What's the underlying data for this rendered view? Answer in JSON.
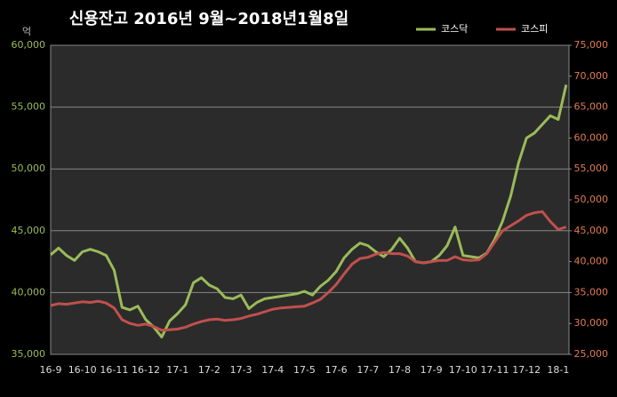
{
  "chart_data": {
    "type": "line",
    "title": "신용잔고 2016년 9월~2018년1월8일",
    "y_label": "억",
    "categories": [
      "16-9",
      null,
      null,
      null,
      "16-10",
      null,
      null,
      null,
      "16-11",
      null,
      null,
      null,
      "16-12",
      null,
      null,
      null,
      "17-1",
      null,
      null,
      null,
      "17-2",
      null,
      null,
      null,
      "17-3",
      null,
      null,
      null,
      "17-4",
      null,
      null,
      null,
      "17-5",
      null,
      null,
      null,
      "17-6",
      null,
      null,
      null,
      "17-7",
      null,
      null,
      null,
      "17-8",
      null,
      null,
      null,
      "17-9",
      null,
      null,
      null,
      "17-10",
      null,
      null,
      null,
      "17-11",
      null,
      null,
      null,
      "17-12",
      null,
      null,
      null,
      "18-1",
      null
    ],
    "series": [
      {
        "name": "코스닥",
        "color": "#9bbb59",
        "values": [
          43050,
          43600,
          43000,
          42600,
          43300,
          43500,
          43300,
          43000,
          41800,
          38800,
          38600,
          38900,
          37800,
          37200,
          36400,
          37700,
          38300,
          39000,
          40800,
          41200,
          40600,
          40300,
          39600,
          39500,
          39800,
          38700,
          39200,
          39500,
          39600,
          39700,
          39800,
          39900,
          40100,
          39800,
          40500,
          41000,
          41700,
          42800,
          43500,
          44000,
          43800,
          43300,
          42900,
          43500,
          44400,
          43600,
          42500,
          42400,
          42500,
          43000,
          43800,
          45300,
          43000,
          42900,
          42800,
          43200,
          44300,
          45800,
          47800,
          50500,
          52500,
          52900,
          53600,
          54300,
          54000,
          56800
        ]
      },
      {
        "name": "코스피",
        "color": "#c0504d",
        "axis": "y2",
        "values": [
          32900,
          33200,
          33100,
          33300,
          33500,
          33400,
          33600,
          33300,
          32500,
          30600,
          30000,
          29700,
          29900,
          29500,
          28900,
          29000,
          29100,
          29400,
          29900,
          30300,
          30600,
          30700,
          30500,
          30600,
          30800,
          31200,
          31500,
          31900,
          32300,
          32500,
          32600,
          32700,
          32800,
          33300,
          33900,
          35000,
          36300,
          38000,
          39600,
          40500,
          40700,
          41200,
          41500,
          41300,
          41300,
          40900,
          40000,
          39800,
          40000,
          40200,
          40200,
          40800,
          40300,
          40200,
          40300,
          41300,
          43200,
          45000,
          45800,
          46600,
          47500,
          47900,
          48100,
          46500,
          45200,
          45600
        ]
      }
    ],
    "ylim": [
      35000,
      60000
    ],
    "yticks": [
      {
        "value": 35000,
        "label": "35,000"
      },
      {
        "value": 40000,
        "label": "40,000"
      },
      {
        "value": 45000,
        "label": "45,000"
      },
      {
        "value": 50000,
        "label": "50,000"
      },
      {
        "value": 55000,
        "label": "55,000"
      },
      {
        "value": 60000,
        "label": "60,000"
      }
    ],
    "y2lim": [
      25000,
      75000
    ],
    "y2ticks": [
      {
        "value": 25000,
        "label": "25,000"
      },
      {
        "value": 30000,
        "label": "30,000"
      },
      {
        "value": 35000,
        "label": "35,000"
      },
      {
        "value": 40000,
        "label": "40,000"
      },
      {
        "value": 45000,
        "label": "45,000"
      },
      {
        "value": 50000,
        "label": "50,000"
      },
      {
        "value": 55000,
        "label": "55,000"
      },
      {
        "value": 60000,
        "label": "60,000"
      },
      {
        "value": 65000,
        "label": "65,000"
      },
      {
        "value": 70000,
        "label": "70,000"
      },
      {
        "value": 75000,
        "label": "75,000"
      }
    ],
    "grid": true,
    "legend": "top-right"
  }
}
